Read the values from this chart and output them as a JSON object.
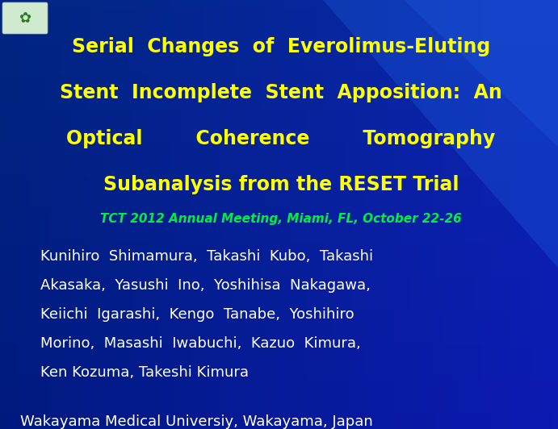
{
  "bg_color": "#0033cc",
  "bg_color_dark": "#001a7a",
  "title_lines": [
    "Serial  Changes  of  Everolimus-Eluting",
    "Stent  Incomplete  Stent  Apposition:  An",
    "Optical        Coherence        Tomography",
    "Subanalysis from the RESET Trial"
  ],
  "title_color": "#ffff00",
  "subtitle": "TCT 2012 Annual Meeting, Miami, FL, October 22-26",
  "subtitle_color": "#00ee44",
  "authors_lines": [
    "Kunihiro  Shimamura,  Takashi  Kubo,  Takashi",
    "Akasaka,  Yasushi  Ino,  Yoshihisa  Nakagawa,",
    "Keiichi  Igarashi,  Kengo  Tanabe,  Yoshihiro",
    "Morino,  Masashi  Iwabuchi,  Kazuo  Kimura,",
    "Ken Kozuma, Takeshi Kimura"
  ],
  "authors_color": "#ffffff",
  "affiliation": "Wakayama Medical Universiy, Wakayama, Japan",
  "affiliation_color": "#ffffff",
  "title_fontsize": 17,
  "subtitle_fontsize": 11,
  "authors_fontsize": 13,
  "affiliation_fontsize": 13
}
